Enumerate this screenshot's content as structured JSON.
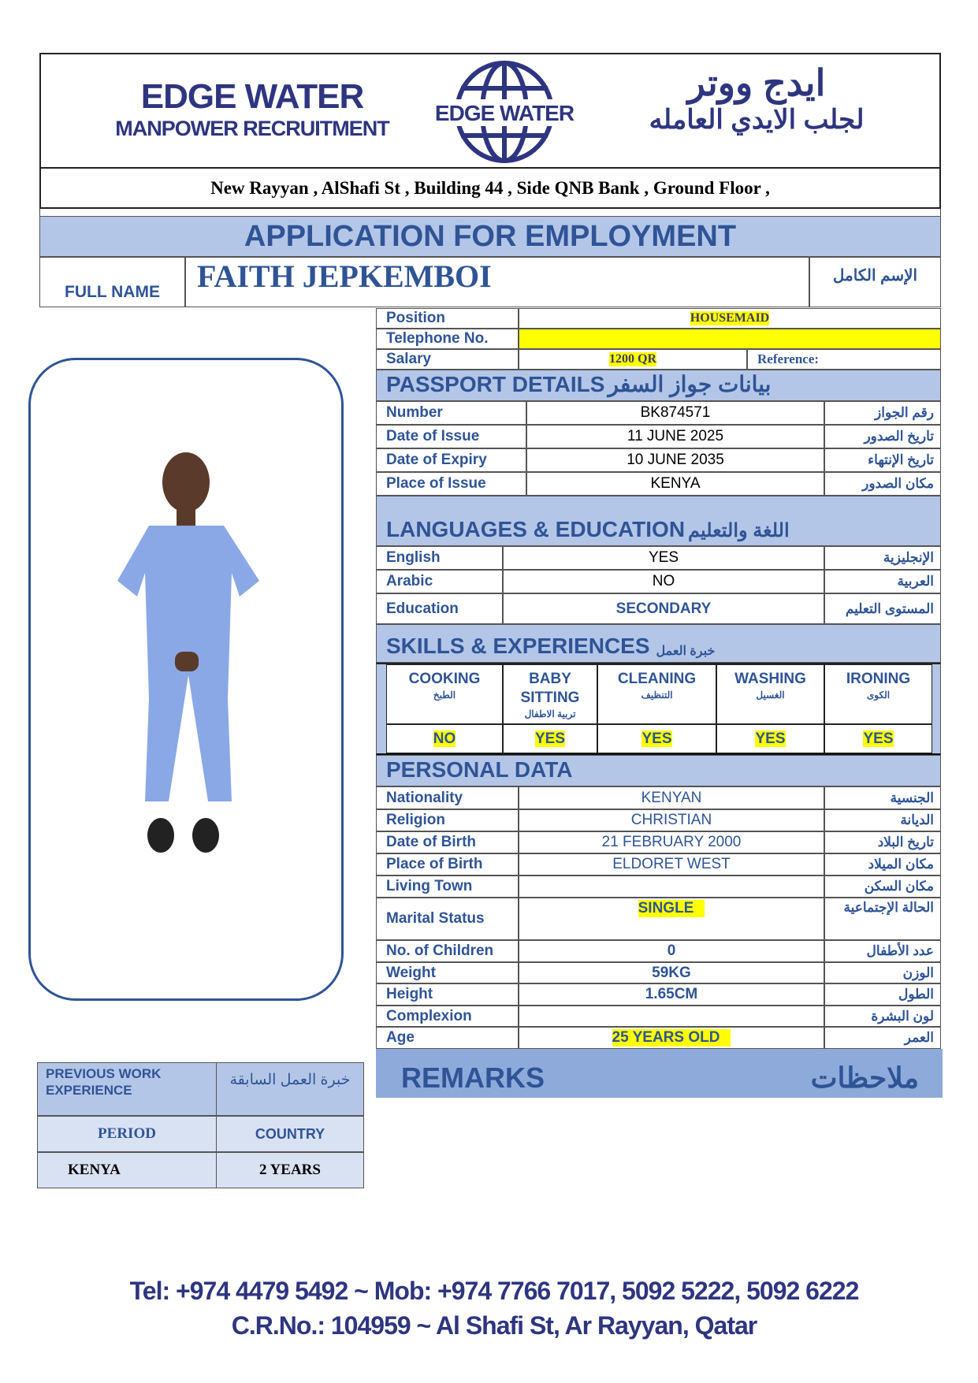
{
  "header": {
    "logo_en_line1": "EDGE WATER",
    "logo_en_line2": "MANPOWER RECRUITMENT",
    "logo_globe_text": "EDGE WATER",
    "logo_ar_line1": "ايدج ووتر",
    "logo_ar_line2": "لجلب الايدي العامله",
    "address": "New Rayyan , AlShafi  St , Building 44 , Side QNB Bank , Ground Floor ,"
  },
  "title": "APPLICATION FOR EMPLOYMENT",
  "full_name": {
    "label": "FULL NAME",
    "value": "FAITH JEPKEMBOI",
    "label_ar": "الإسم الكامل"
  },
  "job": {
    "position_label": "Position",
    "position": "HOUSEMAID",
    "telephone_label": "Telephone No.",
    "telephone": "",
    "salary_label": "Salary",
    "salary": "1200 QR",
    "reference_label": "Reference:"
  },
  "passport": {
    "title": "PASSPORT  DETAILS",
    "title_ar": "بيانات جواز السفر",
    "rows": [
      {
        "label": "Number",
        "value": "BK874571",
        "ar": "رقم الجواز"
      },
      {
        "label": "Date of Issue",
        "value": "11 JUNE 2025",
        "ar": "تاريخ الصدور"
      },
      {
        "label": "Date of Expiry",
        "value": "10 JUNE 2035",
        "ar": "تاريخ الإنتهاء"
      },
      {
        "label": "Place of Issue",
        "value": "KENYA",
        "ar": "مكان الصدور"
      }
    ]
  },
  "languages": {
    "title": "LANGUAGES  &  EDUCATION",
    "title_ar": "اللغة والتعليم",
    "rows": [
      {
        "label": "English",
        "value": "YES",
        "ar": "الإنجليزية"
      },
      {
        "label": "Arabic",
        "value": "NO",
        "ar": "العربية"
      },
      {
        "label": "Education",
        "value": "SECONDARY",
        "ar": "المستوى التعليم"
      }
    ]
  },
  "skills": {
    "title": "SKILLS & EXPERIENCES",
    "title_ar": "خبرة العمل",
    "items": [
      {
        "name": "COOKING",
        "ar": "الطبخ",
        "value": "NO"
      },
      {
        "name": "BABY SITTING",
        "ar": "تربية الاطفال",
        "value": "YES"
      },
      {
        "name": "CLEANING",
        "ar": "التنظيف",
        "value": "YES"
      },
      {
        "name": "WASHING",
        "ar": "الغسيل",
        "value": "YES"
      },
      {
        "name": "IRONING",
        "ar": "الكوى",
        "value": "YES"
      }
    ]
  },
  "personal": {
    "title": "PERSONAL DATA",
    "rows": [
      {
        "label": "Nationality",
        "value": "KENYAN",
        "ar": "الجنسية"
      },
      {
        "label": "Religion",
        "value": "CHRISTIAN",
        "ar": "الديانة"
      },
      {
        "label": "Date of Birth",
        "value": "21 FEBRUARY 2000",
        "ar": "تاريخ البلاد"
      },
      {
        "label": "Place of Birth",
        "value": "ELDORET WEST",
        "ar": "مكان الميلاد"
      },
      {
        "label": "Living Town",
        "value": "",
        "ar": "مكان السكن"
      },
      {
        "label": "Marital Status",
        "value": "SINGLE",
        "ar": "الحالة الإجتماعية"
      },
      {
        "label": "No. of Children",
        "value": "0",
        "ar": "عدد الأطفال"
      },
      {
        "label": "Weight",
        "value": "59KG",
        "ar": "الوزن"
      },
      {
        "label": "Height",
        "value": "1.65CM",
        "ar": "الطول"
      },
      {
        "label": "Complexion",
        "value": "",
        "ar": "لون البشرة"
      },
      {
        "label": "Age",
        "value": "25 YEARS OLD",
        "ar": "العمر"
      }
    ]
  },
  "remarks": {
    "label": "REMARKS",
    "label_ar": "ملاحظات"
  },
  "previous_work": {
    "title": "PREVIOUS WORK EXPERIENCE",
    "title_ar": "خبرة العمل السابقة",
    "col1": "PERIOD",
    "col2": "COUNTRY",
    "row_col1": "KENYA",
    "row_col2": "2 YEARS"
  },
  "footer": {
    "line1": "Tel: +974 4479 5492  ~  Mob: +974 7766 7017, 5092 5222, 5092 6222",
    "line2": "C.R.No.: 104959  ~   Al Shafi St, Ar Rayyan, Qatar"
  },
  "colors": {
    "brand_blue": "#2f5496",
    "band": "#b4c6e7",
    "remarks": "#8eaadb",
    "highlight": "#ffff00"
  }
}
